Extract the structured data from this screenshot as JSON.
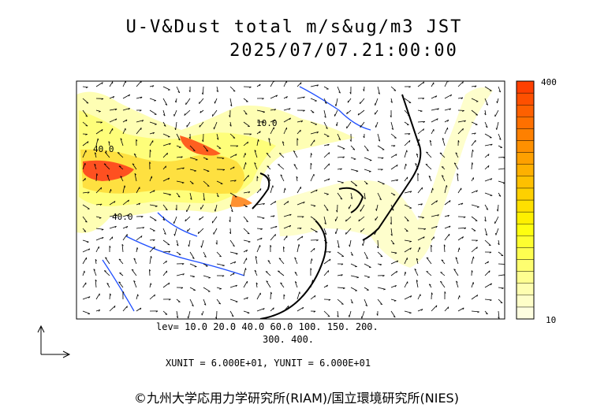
{
  "title": "U-V&Dust total m/s&ug/m3 JST",
  "timestamp": "2025/07/07.21:00:00",
  "colorbar": {
    "max_label": "400",
    "min_label": "10",
    "colors": [
      "#fefee0",
      "#fefec8",
      "#fefeb0",
      "#fefe90",
      "#fefe70",
      "#fefe50",
      "#fefe30",
      "#fefe10",
      "#fef000",
      "#fee000",
      "#fed000",
      "#fec000",
      "#feb000",
      "#fea000",
      "#fe9000",
      "#fe8000",
      "#fe7000",
      "#fe6000",
      "#fe5000",
      "#fe4000"
    ]
  },
  "contour_labels": [
    "40.0",
    "40.0",
    "10.0"
  ],
  "levels_line1": "lev= 10.0 20.0 40.0 60.0 100. 150. 200.",
  "levels_line2": "300. 400.",
  "units": "XUNIT = 6.000E+01, YUNIT = 6.000E+01",
  "credit": "©九州大学応用力学研究所(RIAM)/国立環境研究所(NIES)"
}
